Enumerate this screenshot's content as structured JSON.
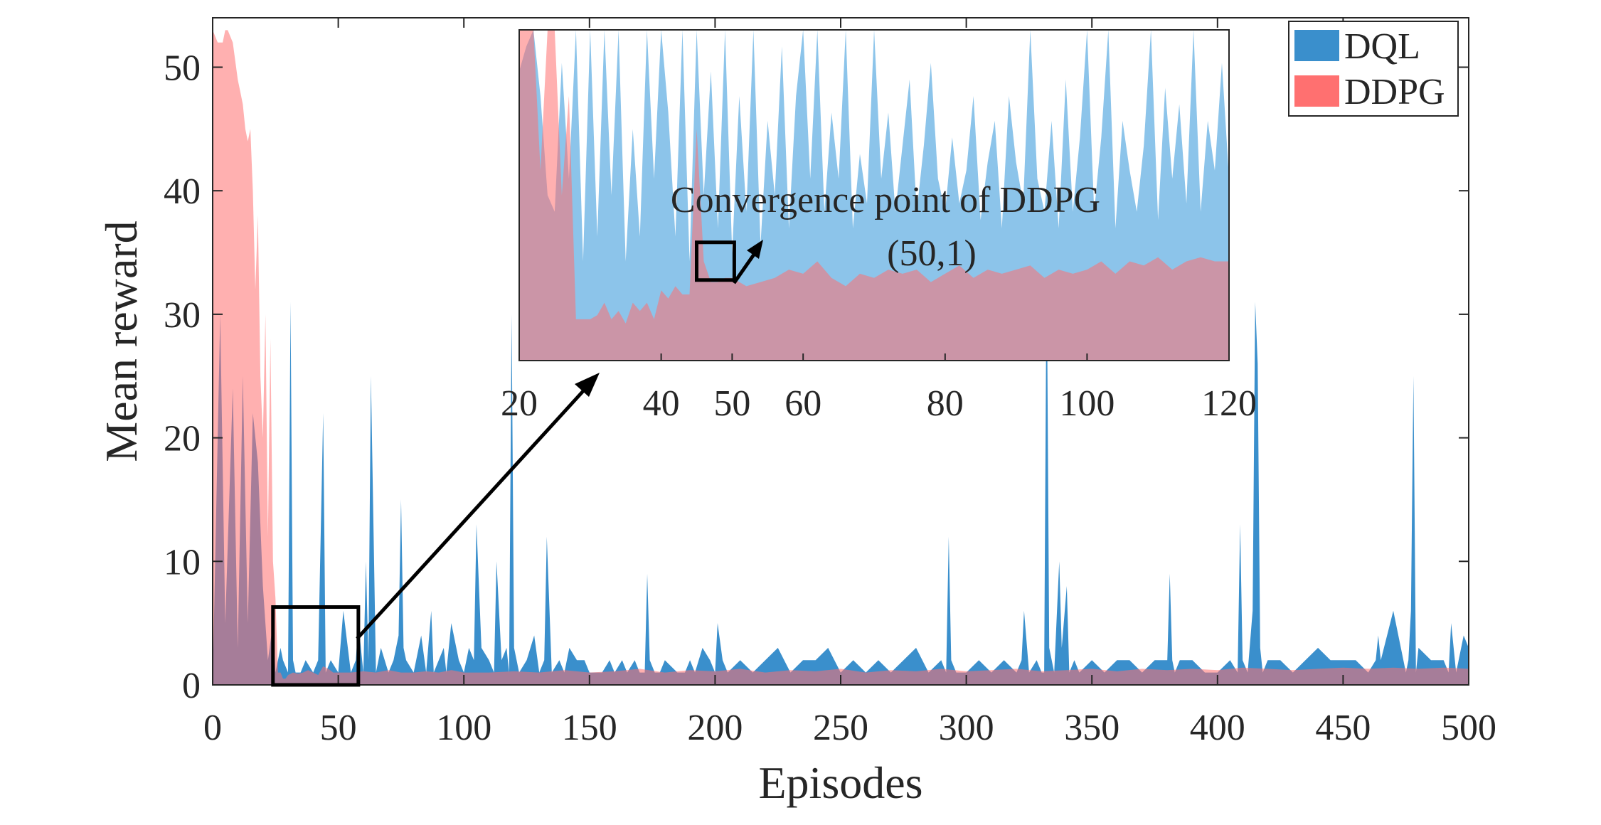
{
  "chart_data": {
    "type": "area",
    "xlabel": "Episodes",
    "ylabel": "Mean reward",
    "xlim": [
      0,
      500
    ],
    "ylim": [
      0,
      54
    ],
    "xticks": [
      0,
      50,
      100,
      150,
      200,
      250,
      300,
      350,
      400,
      450,
      500
    ],
    "yticks": [
      0,
      10,
      20,
      30,
      40,
      50
    ],
    "grid": false,
    "legend_position": "top-right",
    "colors": {
      "DQL": "#3a8fcc",
      "DDPG": "#ff7070"
    },
    "series": [
      {
        "name": "DQL",
        "x": [
          0,
          3,
          5,
          8,
          10,
          12,
          14,
          16,
          18,
          20,
          22,
          24,
          25,
          27,
          28,
          30,
          31,
          32,
          33,
          35,
          37,
          40,
          42,
          44,
          45,
          47,
          50,
          52,
          55,
          57,
          58,
          60,
          61,
          62,
          63,
          65,
          67,
          70,
          72,
          74,
          75,
          76,
          77,
          80,
          83,
          85,
          87,
          88,
          90,
          92,
          93,
          95,
          98,
          100,
          102,
          104,
          105,
          107,
          110,
          112,
          113,
          115,
          117,
          118,
          119,
          120,
          122,
          125,
          128,
          130,
          132,
          133,
          135,
          138,
          140,
          142,
          145,
          148,
          150,
          155,
          158,
          160,
          163,
          165,
          168,
          170,
          172,
          173,
          174,
          176,
          178,
          180,
          185,
          188,
          190,
          192,
          195,
          198,
          200,
          201,
          203,
          205,
          210,
          215,
          220,
          225,
          230,
          235,
          240,
          245,
          250,
          255,
          260,
          265,
          270,
          275,
          280,
          285,
          290,
          292,
          293,
          294,
          296,
          300,
          305,
          310,
          315,
          320,
          322,
          323,
          325,
          328,
          330,
          331,
          332,
          333,
          335,
          337,
          338,
          340,
          341,
          343,
          345,
          350,
          355,
          360,
          365,
          370,
          375,
          380,
          381,
          382,
          383,
          385,
          390,
          395,
          400,
          405,
          408,
          409,
          410,
          412,
          414,
          415,
          416,
          417,
          418,
          420,
          425,
          430,
          435,
          440,
          445,
          450,
          452,
          455,
          460,
          463,
          464,
          465,
          470,
          475,
          476,
          477,
          478,
          479,
          480,
          485,
          490,
          492,
          493,
          495,
          498,
          500
        ],
        "y": [
          0,
          30,
          5,
          24,
          3,
          25,
          5,
          22,
          18,
          8,
          2,
          5,
          1,
          3,
          2,
          1,
          31,
          2,
          1,
          1,
          2,
          1,
          2,
          22,
          1,
          2,
          1,
          6,
          1,
          2,
          5,
          1,
          10,
          2,
          25,
          1,
          3,
          1,
          2,
          4,
          15,
          3,
          2,
          1,
          4,
          1,
          6,
          1,
          2,
          3,
          1,
          5,
          2,
          1,
          3,
          2,
          13,
          3,
          2,
          1,
          10,
          2,
          3,
          1,
          30,
          3,
          1,
          2,
          4,
          1,
          2,
          12,
          1,
          2,
          1,
          3,
          2,
          2,
          1,
          1,
          2,
          1,
          2,
          1,
          2,
          1,
          1,
          9,
          2,
          1,
          1,
          2,
          1,
          1,
          2,
          1,
          3,
          2,
          1,
          5,
          2,
          1,
          2,
          1,
          2,
          3,
          1,
          2,
          2,
          3,
          1,
          2,
          1,
          2,
          1,
          2,
          3,
          1,
          2,
          1,
          12,
          2,
          1,
          1,
          2,
          1,
          2,
          1,
          2,
          6,
          1,
          2,
          1,
          1,
          35,
          3,
          1,
          10,
          3,
          8,
          1,
          2,
          1,
          2,
          1,
          2,
          2,
          1,
          2,
          2,
          9,
          2,
          1,
          2,
          2,
          1,
          1,
          2,
          1,
          13,
          2,
          1,
          6,
          31,
          26,
          3,
          1,
          2,
          2,
          1,
          2,
          3,
          2,
          2,
          2,
          2,
          1,
          2,
          4,
          2,
          6,
          1,
          2,
          6,
          25,
          1,
          3,
          2,
          2,
          1,
          5,
          1,
          4,
          3
        ]
      },
      {
        "name": "DDPG",
        "x": [
          0,
          2,
          4,
          5,
          6,
          8,
          10,
          11,
          12,
          13,
          14,
          15,
          16,
          17,
          18,
          19,
          20,
          21,
          22,
          23,
          24,
          25,
          26,
          27,
          28,
          29,
          30,
          32,
          34,
          36,
          38,
          40,
          42,
          44,
          46,
          48,
          50,
          55,
          60,
          65,
          70,
          75,
          80,
          85,
          90,
          95,
          100,
          110,
          120,
          130,
          140,
          150,
          160,
          170,
          180,
          190,
          200,
          210,
          220,
          230,
          240,
          250,
          260,
          270,
          280,
          290,
          300,
          310,
          320,
          330,
          340,
          350,
          360,
          370,
          380,
          390,
          400,
          410,
          420,
          430,
          440,
          450,
          460,
          470,
          480,
          490,
          500
        ],
        "y": [
          53,
          52,
          52,
          53,
          53,
          52,
          49,
          48,
          47,
          45,
          44,
          45,
          40,
          32,
          38,
          25,
          20,
          30,
          12,
          28,
          10,
          7,
          1,
          1,
          0.5,
          0.5,
          0.8,
          1,
          0.9,
          1,
          1.2,
          1,
          0.8,
          1.5,
          1.3,
          1,
          1,
          1,
          1.1,
          1,
          1.2,
          1,
          1,
          1.1,
          1,
          1.2,
          1,
          1,
          1.1,
          1,
          1.2,
          1,
          1.1,
          1.3,
          1,
          1.2,
          1.1,
          1.3,
          1,
          1.2,
          1.1,
          1.3,
          1,
          1.2,
          1.1,
          1.3,
          1.1,
          1.2,
          1.3,
          1.1,
          1.2,
          1.3,
          1.1,
          1.3,
          1.2,
          1.3,
          1.2,
          1.4,
          1.3,
          1.2,
          1.3,
          1.4,
          1.3,
          1.4,
          1.3,
          1.4,
          1.3
        ]
      }
    ],
    "legend": [
      "DQL",
      "DDPG"
    ],
    "inset": {
      "xlim": [
        20,
        120
      ],
      "ylim": [
        0,
        4
      ],
      "xticks": [
        20,
        40,
        50,
        60,
        80,
        100,
        120
      ],
      "annotation_line1": "Convergence point of DDPG",
      "annotation_line2": "(50,1)",
      "convergence_point": [
        50,
        1
      ],
      "source_box": {
        "x": [
          24,
          58
        ],
        "y": [
          0,
          4
        ]
      },
      "dql": {
        "x": [
          20,
          21,
          22,
          23,
          24,
          25,
          26,
          27,
          28,
          29,
          30,
          31,
          32,
          33,
          34,
          35,
          36,
          37,
          38,
          39,
          40,
          41,
          42,
          43,
          44,
          45,
          46,
          47,
          48,
          49,
          50,
          51,
          52,
          53,
          54,
          55,
          56,
          57,
          58,
          59,
          60,
          61,
          62,
          63,
          64,
          65,
          66,
          67,
          68,
          69,
          70,
          71,
          72,
          73,
          74,
          75,
          76,
          77,
          78,
          79,
          80,
          81,
          82,
          83,
          84,
          85,
          86,
          87,
          88,
          89,
          90,
          91,
          92,
          93,
          94,
          95,
          96,
          97,
          98,
          99,
          100,
          101,
          102,
          103,
          104,
          105,
          106,
          107,
          108,
          109,
          110,
          111,
          112,
          113,
          114,
          115,
          116,
          117,
          118,
          119,
          120
        ],
        "y": [
          3.5,
          3.8,
          4,
          3.2,
          2,
          1.8,
          3.6,
          2.2,
          4,
          1.2,
          4,
          1.5,
          4,
          2,
          4,
          1.2,
          2.8,
          1.5,
          4,
          2.2,
          4,
          3,
          1.5,
          4,
          1.2,
          4,
          2,
          3.5,
          1.6,
          4,
          1.3,
          3.2,
          1.8,
          4,
          1.4,
          2.9,
          2,
          3.8,
          1.6,
          3.2,
          4,
          2.2,
          4,
          1.8,
          3,
          2.2,
          4,
          1.6,
          2.5,
          1.9,
          4,
          2.2,
          3,
          1.8,
          2.6,
          3.4,
          1.8,
          2.6,
          3.6,
          2.2,
          1.8,
          2.7,
          1.9,
          2.3,
          3.2,
          1.7,
          2.4,
          2.9,
          1.6,
          3.2,
          2.4,
          1.9,
          4,
          2.2,
          1.8,
          2.9,
          1.6,
          3.4,
          1.8,
          2.7,
          4,
          1.8,
          2.7,
          4,
          1.6,
          2.9,
          2.3,
          1.8,
          2.6,
          4,
          1.7,
          3.3,
          2.2,
          3.1,
          1.9,
          4,
          1.8,
          2.9,
          2.3,
          3.6,
          2.2
        ]
      },
      "ddpg": {
        "x": [
          20,
          21,
          22,
          23,
          24,
          25,
          26,
          27,
          28,
          29,
          30,
          31,
          32,
          33,
          34,
          35,
          36,
          37,
          38,
          39,
          40,
          41,
          42,
          43,
          44,
          45,
          46,
          47,
          48,
          49,
          50,
          52,
          54,
          56,
          58,
          60,
          62,
          64,
          66,
          68,
          70,
          72,
          74,
          76,
          78,
          80,
          82,
          84,
          86,
          88,
          90,
          92,
          94,
          96,
          98,
          100,
          102,
          104,
          106,
          108,
          110,
          112,
          114,
          116,
          118,
          120
        ],
        "y": [
          4,
          4,
          4,
          2.3,
          4,
          4,
          2,
          3.2,
          0.5,
          0.5,
          0.5,
          0.55,
          0.7,
          0.5,
          0.6,
          0.45,
          0.7,
          0.6,
          0.7,
          0.5,
          0.85,
          0.75,
          0.9,
          0.8,
          0.8,
          2.8,
          1.2,
          0.95,
          0.95,
          1,
          1,
          0.9,
          0.95,
          1,
          1.1,
          1.05,
          1.2,
          1,
          0.9,
          1.05,
          1,
          1.1,
          1.05,
          1.1,
          0.95,
          1.05,
          1.15,
          1,
          1.1,
          1.05,
          1.1,
          1.15,
          1,
          1.1,
          1.05,
          1.1,
          1.2,
          1.05,
          1.2,
          1.15,
          1.25,
          1.1,
          1.2,
          1.25,
          1.2,
          1.2
        ]
      }
    }
  }
}
